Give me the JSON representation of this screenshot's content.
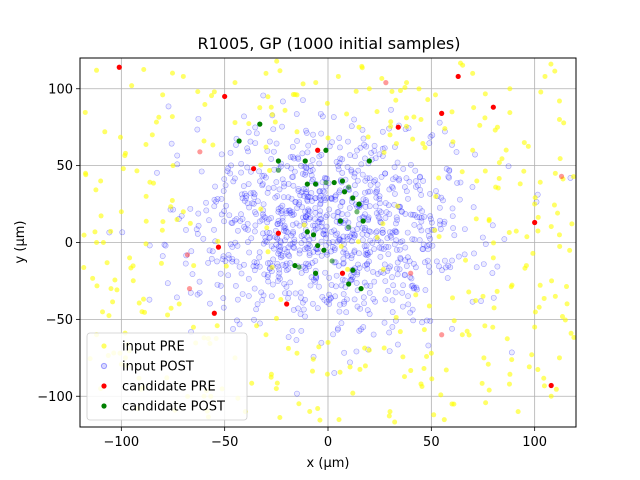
{
  "chart_data": {
    "type": "scatter",
    "title": "R1005, GP (1000 initial samples)",
    "xlabel": "x (µm)",
    "ylabel": "y (µm)",
    "xlim": [
      -120,
      120
    ],
    "ylim": [
      -120,
      120
    ],
    "xticks": [
      -100,
      -50,
      0,
      50,
      100
    ],
    "yticks": [
      -100,
      -50,
      0,
      50,
      100
    ],
    "grid": true,
    "legend_position": "lower-left",
    "background_points": {
      "input_post_count": 1000,
      "input_post_center": [
        0,
        10
      ],
      "input_post_spread": [
        35,
        32
      ],
      "input_pre_count": 280
    },
    "series": [
      {
        "name": "input PRE",
        "color": "#ffff00",
        "alpha": 0.6,
        "values": [
          [
            -112,
            112
          ],
          [
            -95,
            102
          ],
          [
            -80,
            96
          ],
          [
            -70,
            108
          ],
          [
            -55,
            98
          ],
          [
            -45,
            104
          ],
          [
            -30,
            110
          ],
          [
            -15,
            96
          ],
          [
            5,
            108
          ],
          [
            20,
            100
          ],
          [
            38,
            104
          ],
          [
            52,
            96
          ],
          [
            70,
            110
          ],
          [
            88,
            100
          ],
          [
            105,
            108
          ],
          [
            112,
            92
          ],
          [
            -108,
            72
          ],
          [
            -98,
            58
          ],
          [
            -85,
            70
          ],
          [
            -110,
            40
          ],
          [
            -100,
            20
          ],
          [
            -88,
            30
          ],
          [
            -112,
            0
          ],
          [
            -96,
            -10
          ],
          [
            -105,
            -30
          ],
          [
            -90,
            -45
          ],
          [
            -112,
            -60
          ],
          [
            -98,
            -75
          ],
          [
            -110,
            -95
          ],
          [
            -92,
            -108
          ],
          [
            -78,
            -88
          ],
          [
            -60,
            -100
          ],
          [
            -40,
            -110
          ],
          [
            -25,
            -95
          ],
          [
            -5,
            -108
          ],
          [
            12,
            -98
          ],
          [
            30,
            -110
          ],
          [
            45,
            -92
          ],
          [
            60,
            -105
          ],
          [
            78,
            -96
          ],
          [
            92,
            -110
          ],
          [
            108,
            -100
          ],
          [
            112,
            -75
          ],
          [
            100,
            -55
          ],
          [
            110,
            -35
          ],
          [
            96,
            -15
          ],
          [
            112,
            5
          ],
          [
            100,
            25
          ],
          [
            110,
            45
          ],
          [
            95,
            65
          ],
          [
            112,
            80
          ],
          [
            82,
            75
          ],
          [
            70,
            60
          ],
          [
            60,
            85
          ],
          [
            45,
            80
          ],
          [
            30,
            70
          ],
          [
            15,
            75
          ],
          [
            0,
            68
          ],
          [
            -15,
            72
          ],
          [
            -30,
            62
          ],
          [
            -45,
            78
          ],
          [
            -60,
            66
          ],
          [
            -75,
            50
          ],
          [
            -70,
            20
          ],
          [
            -65,
            -15
          ],
          [
            -72,
            -40
          ],
          [
            -60,
            -62
          ],
          [
            -45,
            -75
          ],
          [
            -30,
            -60
          ],
          [
            -15,
            -72
          ],
          [
            0,
            -65
          ],
          [
            20,
            -70
          ],
          [
            35,
            -58
          ],
          [
            50,
            -72
          ],
          [
            65,
            -60
          ],
          [
            75,
            -35
          ],
          [
            80,
            -10
          ],
          [
            78,
            15
          ],
          [
            72,
            40
          ]
        ]
      },
      {
        "name": "input POST",
        "color": "#0000ff",
        "alpha": 0.15,
        "values": []
      },
      {
        "name": "candidate PRE",
        "color": "#ff0000",
        "alpha": 1,
        "values": [
          [
            -101,
            114
          ],
          [
            63,
            108
          ],
          [
            28,
            104
          ],
          [
            55,
            84
          ],
          [
            34,
            75
          ],
          [
            -62,
            59
          ],
          [
            -5,
            60
          ],
          [
            -36,
            48
          ],
          [
            -68,
            -8
          ],
          [
            -53,
            -3
          ],
          [
            -24,
            6
          ],
          [
            -67,
            -30
          ],
          [
            -55,
            -46
          ],
          [
            7,
            -20
          ],
          [
            55,
            -60
          ],
          [
            100,
            13
          ],
          [
            108,
            -93
          ],
          [
            113,
            43
          ],
          [
            -50,
            95
          ],
          [
            -20,
            -40
          ],
          [
            40,
            -20
          ],
          [
            80,
            88
          ]
        ]
      },
      {
        "name": "candidate POST",
        "color": "#008000",
        "alpha": 1,
        "values": [
          [
            -43,
            66
          ],
          [
            -33,
            77
          ],
          [
            -24,
            53
          ],
          [
            -24,
            47
          ],
          [
            -11,
            53
          ],
          [
            -10,
            38
          ],
          [
            -6,
            38
          ],
          [
            -1,
            39
          ],
          [
            3,
            39
          ],
          [
            -1,
            60
          ],
          [
            7,
            40
          ],
          [
            10,
            36
          ],
          [
            8,
            33
          ],
          [
            12,
            29
          ],
          [
            15,
            25
          ],
          [
            14,
            20
          ],
          [
            17,
            14
          ],
          [
            20,
            53
          ],
          [
            6,
            14
          ],
          [
            10,
            10
          ],
          [
            -5,
            -2
          ],
          [
            -7,
            5
          ],
          [
            -10,
            7
          ],
          [
            -14,
            -16
          ],
          [
            -16,
            -15
          ],
          [
            -6,
            -20
          ],
          [
            -2,
            -5
          ],
          [
            2,
            -12
          ],
          [
            12,
            -18
          ],
          [
            10,
            -27
          ],
          [
            16,
            -30
          ]
        ]
      }
    ]
  }
}
